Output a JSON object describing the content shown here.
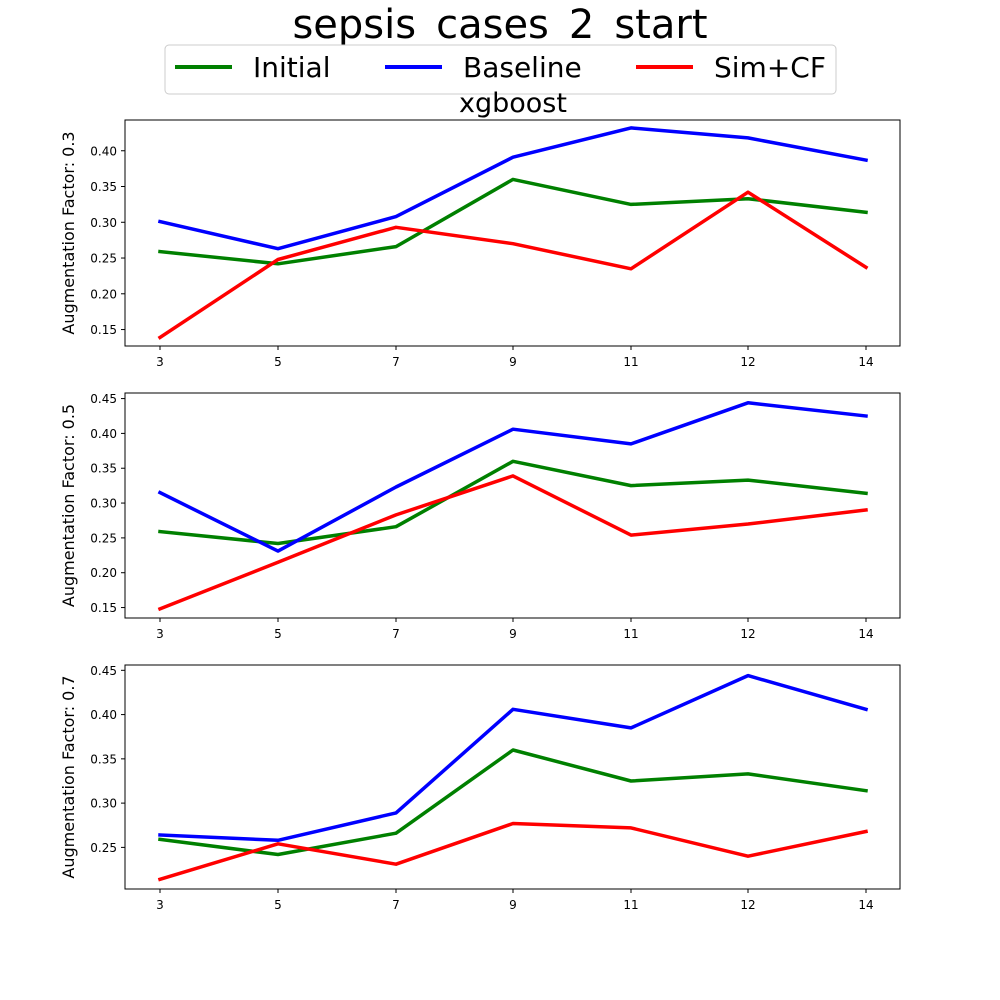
{
  "chart_data": {
    "type": "line",
    "title": "sepsis_cases_2_start",
    "subtitle": "xgboost",
    "legend": {
      "placement": "top-center",
      "entries": [
        "Initial",
        "Baseline",
        "Sim+CF"
      ]
    },
    "colors": {
      "Initial": "#008000",
      "Baseline": "#0000ff",
      "Sim+CF": "#ff0000"
    },
    "categories": [
      "3",
      "5",
      "7",
      "9",
      "11",
      "12",
      "14"
    ],
    "grid": false,
    "panels": [
      {
        "ylabel": "Augmentation Factor: 0.3",
        "ylim": [
          0.127,
          0.443
        ],
        "yticks": [
          "0.15",
          "0.20",
          "0.25",
          "0.30",
          "0.35",
          "0.40"
        ],
        "series": [
          {
            "name": "Initial",
            "values": [
              0.259,
              0.242,
              0.266,
              0.36,
              0.325,
              0.333,
              0.314
            ]
          },
          {
            "name": "Baseline",
            "values": [
              0.301,
              0.263,
              0.308,
              0.391,
              0.432,
              0.418,
              0.387
            ]
          },
          {
            "name": "Sim+CF",
            "values": [
              0.139,
              0.248,
              0.293,
              0.27,
              0.235,
              0.342,
              0.237
            ]
          }
        ]
      },
      {
        "ylabel": "Augmentation Factor: 0.5",
        "ylim": [
          0.135,
          0.458
        ],
        "yticks": [
          "0.15",
          "0.20",
          "0.25",
          "0.30",
          "0.35",
          "0.40",
          "0.45"
        ],
        "series": [
          {
            "name": "Initial",
            "values": [
              0.259,
              0.242,
              0.266,
              0.36,
              0.325,
              0.333,
              0.314
            ]
          },
          {
            "name": "Baseline",
            "values": [
              0.315,
              0.231,
              0.323,
              0.406,
              0.385,
              0.444,
              0.425
            ]
          },
          {
            "name": "Sim+CF",
            "values": [
              0.148,
              0.215,
              0.283,
              0.339,
              0.254,
              0.27,
              0.29
            ]
          }
        ]
      },
      {
        "ylabel": "Augmentation Factor: 0.7",
        "ylim": [
          0.203,
          0.456
        ],
        "yticks": [
          "0.25",
          "0.30",
          "0.35",
          "0.40",
          "0.45"
        ],
        "series": [
          {
            "name": "Initial",
            "values": [
              0.259,
              0.242,
              0.266,
              0.36,
              0.325,
              0.333,
              0.314
            ]
          },
          {
            "name": "Baseline",
            "values": [
              0.264,
              0.258,
              0.289,
              0.406,
              0.385,
              0.444,
              0.406
            ]
          },
          {
            "name": "Sim+CF",
            "values": [
              0.214,
              0.254,
              0.231,
              0.277,
              0.272,
              0.24,
              0.268
            ]
          }
        ]
      }
    ]
  }
}
